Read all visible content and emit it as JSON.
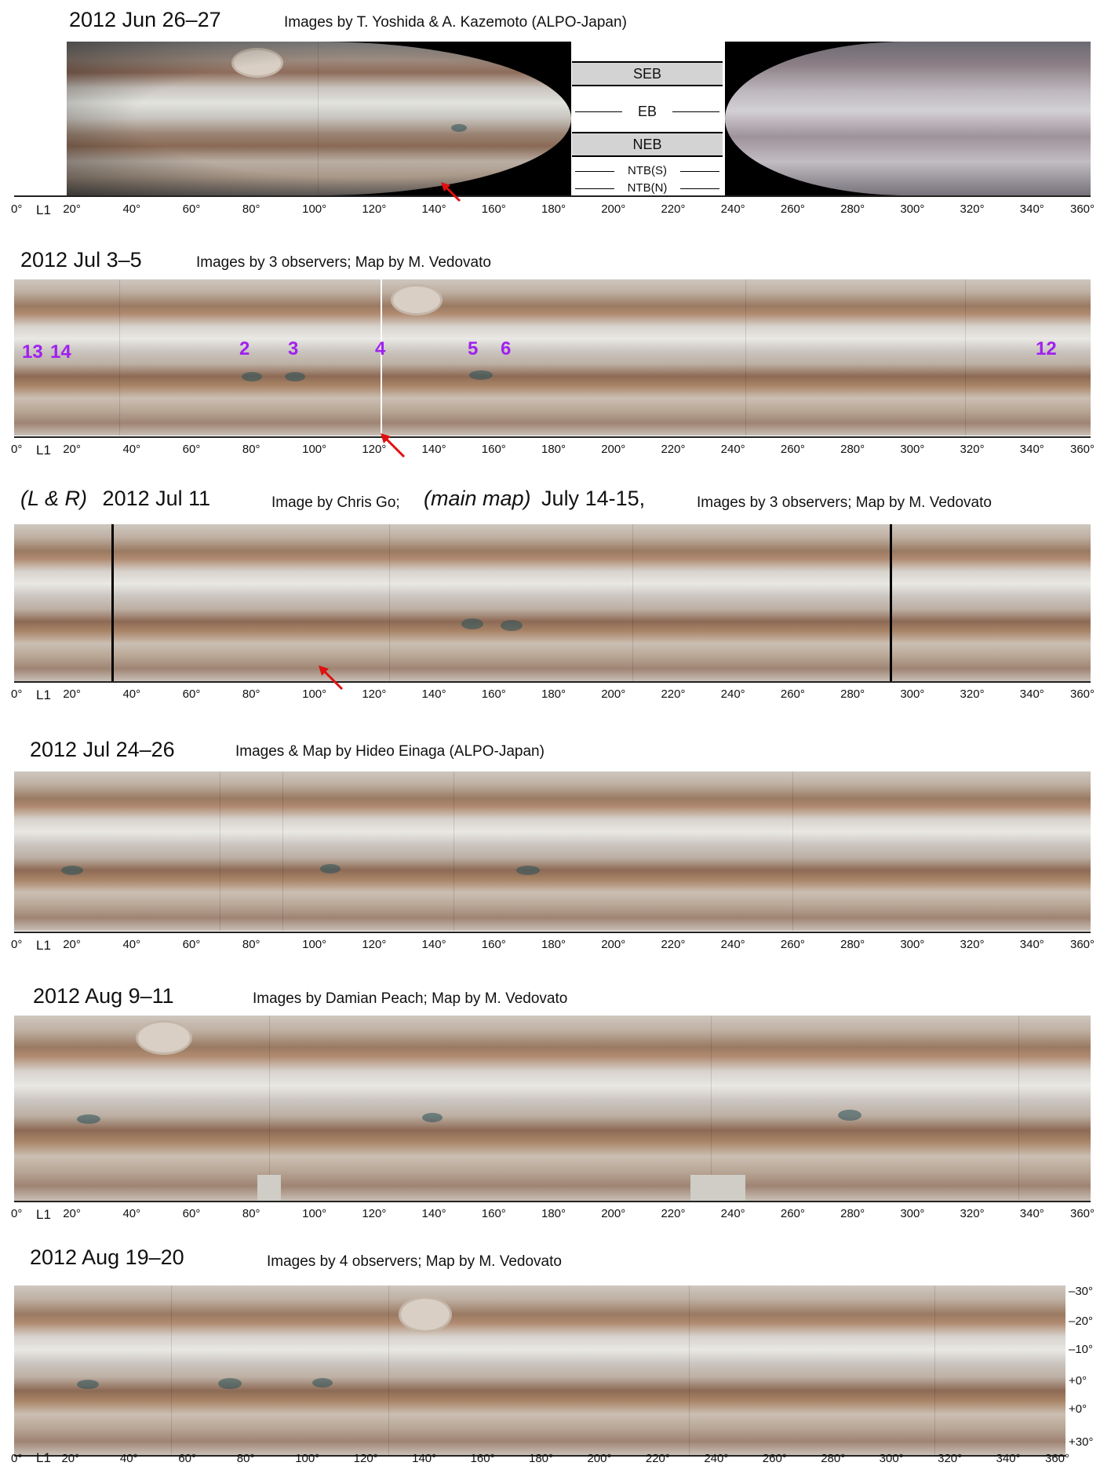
{
  "panels": [
    {
      "title": "2012 Jun 26–27",
      "credit": "Images by T. Yoshida & A. Kazemoto (ALPO-Japan)",
      "legend": {
        "seb": "SEB",
        "eb": "EB",
        "neb": "NEB",
        "ntbs": "NTB(S)",
        "ntbn": "NTB(N)"
      }
    },
    {
      "title": "2012 Jul 3–5",
      "credit": "Images by 3 observers; Map by M. Vedovato",
      "spot_numbers": [
        "13",
        "14",
        "2",
        "3",
        "4",
        "5",
        "6",
        "12"
      ]
    },
    {
      "title_prefix": "(L & R)",
      "title": "2012 Jul 11",
      "credit": "Image by Chris Go;",
      "title2_prefix": "(main map)",
      "title2": "July 14-15,",
      "credit2": "Images by 3 observers; Map by M. Vedovato"
    },
    {
      "title": "2012 Jul 24–26",
      "credit": "Images & Map by Hideo Einaga (ALPO-Japan)"
    },
    {
      "title": "2012 Aug 9–11",
      "credit": "Images by Damian Peach; Map by M. Vedovato"
    },
    {
      "title": "2012 Aug 19–20",
      "credit": "Images by 4 observers; Map by M. Vedovato",
      "lat_labels": [
        "–30°",
        "–20°",
        "–10°",
        "+0°",
        "+0°",
        "+30°"
      ]
    }
  ],
  "axis": {
    "l1_label": "L1",
    "ticks": [
      "0°",
      "20°",
      "40°",
      "60°",
      "80°",
      "100°",
      "120°",
      "140°",
      "160°",
      "180°",
      "200°",
      "220°",
      "240°",
      "260°",
      "280°",
      "300°",
      "320°",
      "340°",
      "360°"
    ]
  },
  "colors": {
    "arrow": "#e01010",
    "spot_numbers": "#a020f0"
  }
}
